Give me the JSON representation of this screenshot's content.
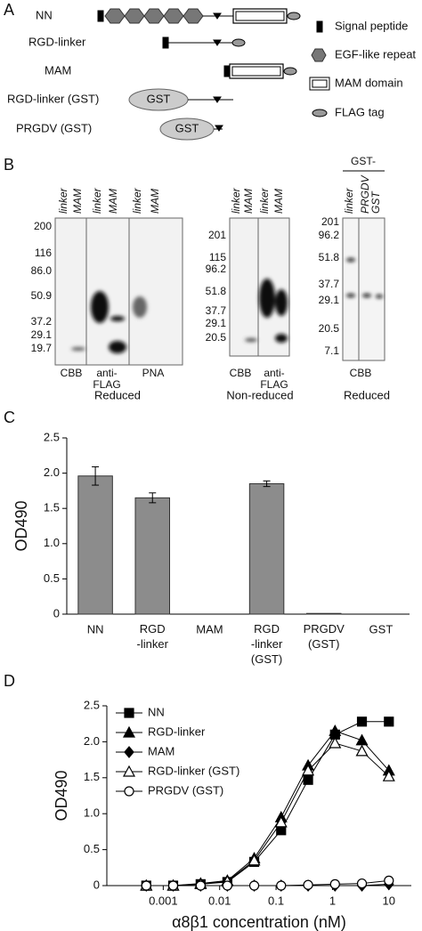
{
  "panel_a": {
    "label": "A",
    "constructs": [
      "NN",
      "RGD-linker",
      "MAM",
      "RGD-linker (GST)",
      "PRGDV (GST)"
    ],
    "gst_label": "GST",
    "legend": [
      "Signal peptide",
      "EGF-like repeat",
      "MAM domain",
      "FLAG tag"
    ]
  },
  "panel_b": {
    "label": "B",
    "gels": [
      {
        "markers": [
          "200",
          "116",
          "86.0",
          "50.9",
          "37.2",
          "29.1",
          "19.7"
        ],
        "lanes": [
          "linker",
          "MAM",
          "linker",
          "MAM",
          "linker",
          "MAM"
        ],
        "stains": [
          "CBB",
          "anti-\nFLAG",
          "PNA"
        ],
        "condition": "Reduced"
      },
      {
        "markers": [
          "201",
          "115",
          "96.2",
          "51.8",
          "37.7",
          "29.1",
          "20.5"
        ],
        "lanes": [
          "linker",
          "MAM",
          "linker",
          "MAM"
        ],
        "stains": [
          "CBB",
          "anti-\nFLAG"
        ],
        "condition": "Non-reduced"
      },
      {
        "header": "GST-",
        "markers": [
          "201",
          "96.2",
          "51.8",
          "37.7",
          "29.1",
          "20.5",
          "7.1"
        ],
        "lanes": [
          "linker",
          "PRGDV\nGST"
        ],
        "stains": [
          "CBB"
        ],
        "condition": "Reduced"
      }
    ]
  },
  "chart_data": [
    {
      "type": "bar",
      "panel": "C",
      "y_label": "OD490",
      "categories": [
        "NN",
        "RGD\n-linker",
        "MAM",
        "RGD\n-linker\n(GST)",
        "PRGDV\n(GST)",
        "GST"
      ],
      "values": [
        1.96,
        1.65,
        0,
        1.85,
        0.01,
        0
      ],
      "errors": [
        0.13,
        0.07,
        0,
        0.04,
        0,
        0
      ],
      "color": "#8c8c8c",
      "ylim": [
        0,
        2.5
      ],
      "yticks": [
        0,
        0.5,
        {
          "value": 1,
          "label": "1.0"
        },
        1.5,
        {
          "value": 2,
          "label": "2.0"
        },
        2.5
      ]
    },
    {
      "type": "line",
      "panel": "D",
      "y_label": "OD490",
      "x_label": "α8β1 concentration (nM)",
      "log_x": true,
      "x": [
        0.0005,
        0.0015,
        0.0046,
        0.0137,
        0.041,
        0.123,
        0.37,
        1.11,
        3.33,
        10
      ],
      "xlim": [
        0.0001,
        25
      ],
      "xticks": [
        0.001,
        0.01,
        0.1,
        1,
        10
      ],
      "ylim": [
        0,
        2.5
      ],
      "yticks": [
        0,
        0.5,
        {
          "value": 1,
          "label": "1.0"
        },
        1.5,
        {
          "value": 2,
          "label": "2.0"
        },
        2.5
      ],
      "legend_position": "upper-left",
      "series": [
        {
          "name": "NN",
          "color": "#000000",
          "marker": "square-filled",
          "values": [
            0,
            0,
            0.02,
            0.05,
            0.33,
            0.77,
            1.47,
            2.1,
            2.28,
            2.28
          ]
        },
        {
          "name": "RGD-linker",
          "color": "#000000",
          "marker": "triangle-filled",
          "values": [
            0,
            0,
            0.03,
            0.07,
            0.38,
            0.95,
            1.67,
            2.15,
            2.02,
            1.6
          ]
        },
        {
          "name": "MAM",
          "color": "#000000",
          "marker": "diamond-filled",
          "values": [
            0,
            0,
            0,
            0,
            0,
            0,
            0,
            0,
            0,
            0.02
          ]
        },
        {
          "name": "RGD-linker (GST)",
          "color": "#000000",
          "marker": "triangle-open",
          "values": [
            0,
            0,
            0.02,
            0.06,
            0.35,
            0.88,
            1.6,
            1.98,
            1.87,
            1.52
          ]
        },
        {
          "name": "PRGDV (GST)",
          "color": "#000000",
          "marker": "circle-open",
          "values": [
            0,
            0,
            0,
            0,
            0,
            0,
            0.01,
            0.02,
            0.03,
            0.07
          ]
        }
      ]
    }
  ]
}
